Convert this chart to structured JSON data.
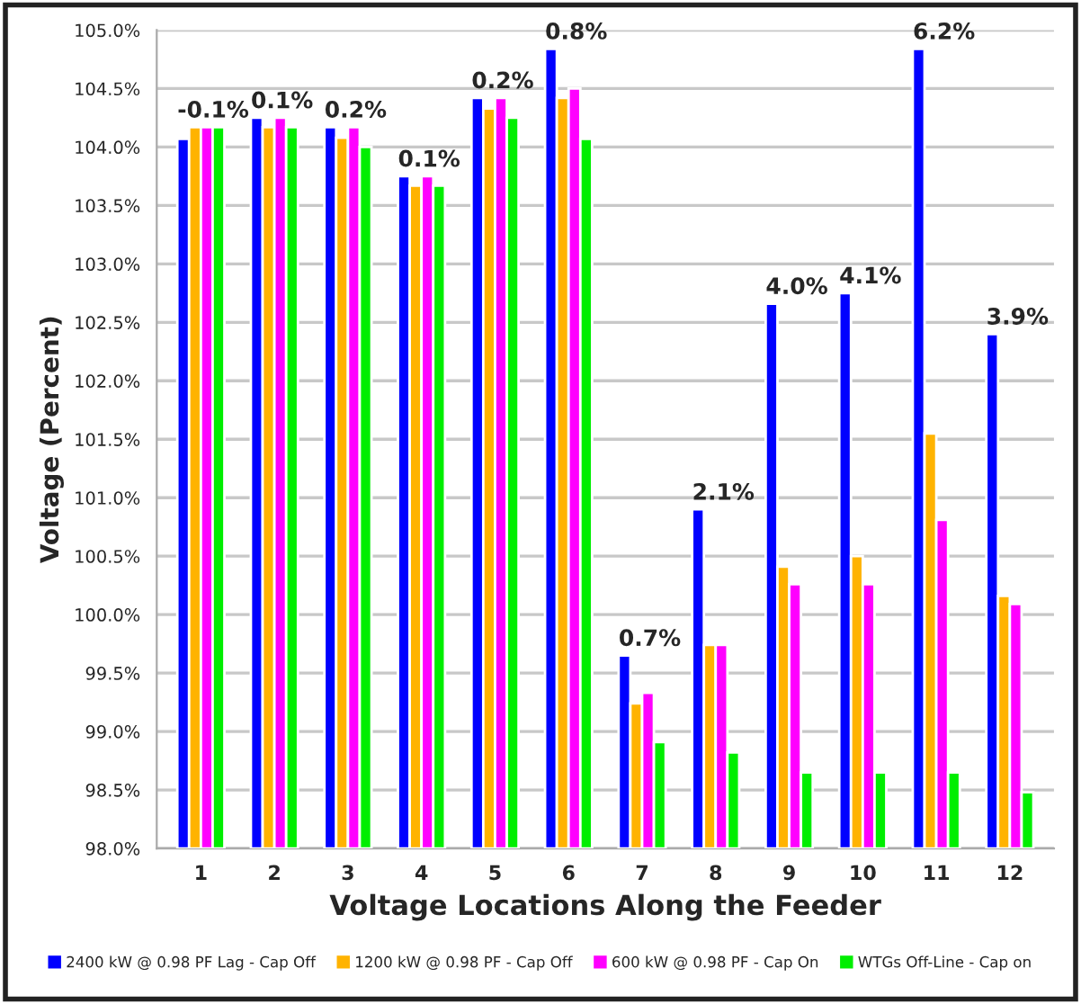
{
  "chart_data": {
    "type": "bar",
    "xlabel": "Voltage Locations Along the Feeder",
    "ylabel": "Voltage (Percent)",
    "categories": [
      "1",
      "2",
      "3",
      "4",
      "5",
      "6",
      "7",
      "8",
      "9",
      "10",
      "11",
      "12"
    ],
    "series": [
      {
        "name": "2400 kW @ 0.98 PF Lag - Cap Off",
        "color": "#0000ff",
        "values": [
          104.07,
          104.25,
          104.17,
          103.75,
          104.42,
          104.84,
          99.65,
          100.9,
          102.66,
          102.75,
          104.84,
          102.4
        ]
      },
      {
        "name": "1200 kW @ 0.98 PF - Cap Off",
        "color": "#ffb300",
        "values": [
          104.17,
          104.17,
          104.08,
          103.67,
          104.33,
          104.42,
          99.24,
          99.74,
          100.41,
          100.5,
          101.55,
          100.16
        ]
      },
      {
        "name": "600 kW @ 0.98 PF - Cap On",
        "color": "#ff00ff",
        "values": [
          104.17,
          104.25,
          104.17,
          103.75,
          104.42,
          104.5,
          99.33,
          99.74,
          100.26,
          100.26,
          100.81,
          100.09
        ]
      },
      {
        "name": "WTGs Off-Line - Cap on",
        "color": "#00ee00",
        "values": [
          104.17,
          104.17,
          104.0,
          103.67,
          104.25,
          104.07,
          98.91,
          98.82,
          98.65,
          98.65,
          98.65,
          98.48
        ]
      }
    ],
    "ylim": [
      98.0,
      105.0
    ],
    "yticks": [
      {
        "value": 98.0,
        "label": "98.0%"
      },
      {
        "value": 98.5,
        "label": "98.5%"
      },
      {
        "value": 99.0,
        "label": "99.0%"
      },
      {
        "value": 99.5,
        "label": "99.5%"
      },
      {
        "value": 100.0,
        "label": "100.0%"
      },
      {
        "value": 100.5,
        "label": "100.5%"
      },
      {
        "value": 101.0,
        "label": "101.0%"
      },
      {
        "value": 101.5,
        "label": "101.5%"
      },
      {
        "value": 102.0,
        "label": "102.0%"
      },
      {
        "value": 102.5,
        "label": "102.5%"
      },
      {
        "value": 103.0,
        "label": "103.0%"
      },
      {
        "value": 103.5,
        "label": "103.5%"
      },
      {
        "value": 104.0,
        "label": "104.0%"
      },
      {
        "value": 104.5,
        "label": "104.5%"
      },
      {
        "value": 105.0,
        "label": "105.0%"
      }
    ],
    "annotations": [
      "-0.1%",
      "0.1%",
      "0.2%",
      "0.1%",
      "0.2%",
      "0.8%",
      "0.7%",
      "2.1%",
      "4.0%",
      "4.1%",
      "6.2%",
      "3.9%"
    ],
    "grid": "y",
    "legend": "bottom"
  }
}
